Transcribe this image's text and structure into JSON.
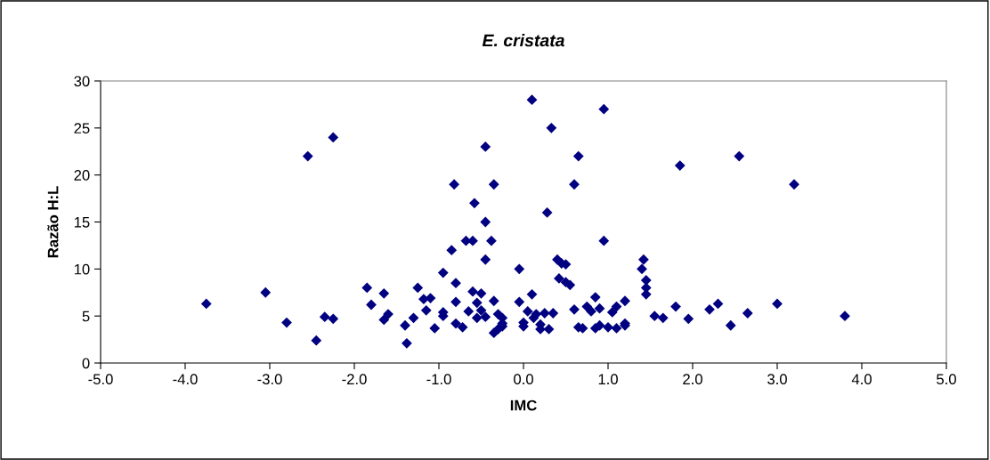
{
  "chart_data": {
    "type": "scatter",
    "title": "E. cristata",
    "xlabel": "IMC",
    "ylabel": "Razão H:L",
    "x": [
      -3.75,
      -3.05,
      -2.8,
      -2.55,
      -2.45,
      -2.35,
      -2.25,
      -2.25,
      -1.85,
      -1.8,
      -1.65,
      -1.65,
      -1.6,
      -1.4,
      -1.38,
      -1.3,
      -1.25,
      -1.18,
      -1.15,
      -1.1,
      -1.05,
      -0.95,
      -0.95,
      -0.95,
      -0.85,
      -0.82,
      -0.8,
      -0.8,
      -0.8,
      -0.72,
      -0.68,
      -0.65,
      -0.6,
      -0.6,
      -0.58,
      -0.55,
      -0.55,
      -0.5,
      -0.5,
      -0.45,
      -0.45,
      -0.45,
      -0.45,
      -0.38,
      -0.35,
      -0.35,
      -0.35,
      -0.3,
      -0.3,
      -0.25,
      -0.25,
      -0.25,
      -0.05,
      -0.05,
      0.0,
      0.0,
      0.05,
      0.1,
      0.1,
      0.12,
      0.15,
      0.2,
      0.2,
      0.25,
      0.28,
      0.3,
      0.33,
      0.35,
      0.4,
      0.42,
      0.45,
      0.5,
      0.5,
      0.55,
      0.6,
      0.6,
      0.65,
      0.65,
      0.7,
      0.75,
      0.8,
      0.85,
      0.85,
      0.9,
      0.9,
      0.95,
      0.95,
      1.0,
      1.05,
      1.1,
      1.1,
      1.2,
      1.2,
      1.2,
      1.4,
      1.42,
      1.45,
      1.45,
      1.45,
      1.55,
      1.65,
      1.8,
      1.85,
      1.95,
      2.2,
      2.3,
      2.45,
      2.55,
      2.65,
      3.0,
      3.2,
      3.8
    ],
    "values": [
      6.3,
      7.5,
      4.3,
      22,
      2.4,
      4.9,
      24,
      4.7,
      8,
      6.2,
      7.4,
      4.6,
      5.2,
      4.0,
      2.1,
      4.8,
      8,
      6.8,
      5.6,
      6.9,
      3.7,
      9.6,
      5.0,
      5.4,
      12,
      19,
      8.5,
      6.5,
      4.2,
      3.8,
      13,
      5.5,
      13,
      7.6,
      17,
      6.4,
      4.8,
      7.4,
      5.6,
      23,
      15,
      11,
      4.9,
      13,
      19,
      6.6,
      3.2,
      5.2,
      3.6,
      4.8,
      4.2,
      3.9,
      10,
      6.5,
      4.3,
      3.9,
      5.5,
      28,
      7.3,
      4.8,
      5.2,
      3.6,
      4.1,
      5.3,
      16,
      3.6,
      25,
      5.3,
      11,
      9.0,
      10.6,
      10.5,
      8.6,
      8.3,
      5.7,
      19,
      22,
      3.8,
      3.7,
      6,
      5.5,
      7,
      3.7,
      5.8,
      4,
      27,
      13,
      3.8,
      5.4,
      6.0,
      3.7,
      6.6,
      4.0,
      4.2,
      10,
      11,
      7.3,
      8.8,
      8,
      5,
      4.8,
      6,
      21,
      4.7,
      5.7,
      6.3,
      4,
      22,
      5.3,
      6.3,
      19,
      5
    ],
    "color": "#000080",
    "marker": "diamond",
    "xlim": [
      -5,
      5
    ],
    "xticks": [
      {
        "value": -5,
        "label": "-5.0"
      },
      {
        "value": -4,
        "label": "-4.0"
      },
      {
        "value": -3,
        "label": "-3.0"
      },
      {
        "value": -2,
        "label": "-2.0"
      },
      {
        "value": -1,
        "label": "-1.0"
      },
      {
        "value": 0,
        "label": "0.0"
      },
      {
        "value": 1,
        "label": "1.0"
      },
      {
        "value": 2,
        "label": "2.0"
      },
      {
        "value": 3,
        "label": "3.0"
      },
      {
        "value": 4,
        "label": "4.0"
      },
      {
        "value": 5,
        "label": "5.0"
      }
    ],
    "ylim": [
      0,
      30
    ],
    "yticks": [
      0,
      5,
      10,
      15,
      20,
      25,
      30
    ],
    "grid": false
  }
}
